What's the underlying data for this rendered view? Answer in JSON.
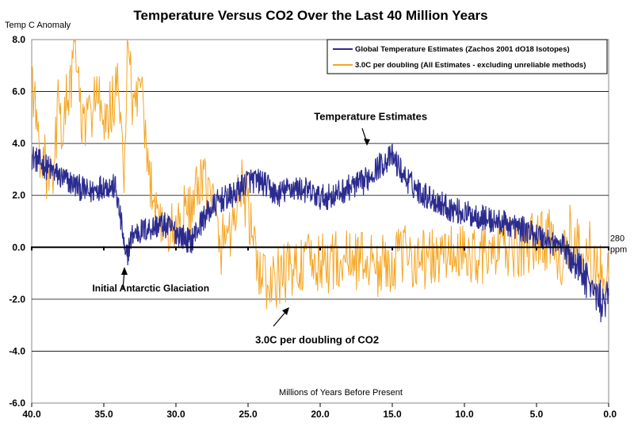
{
  "chart_data": {
    "type": "line",
    "title": "Temperature Versus CO2 Over the Last 40 Million Years",
    "ylabel": "Temp C Anomaly",
    "xlabel": "Millions of Years Before Present",
    "xlim": [
      40,
      0
    ],
    "ylim": [
      -6,
      8
    ],
    "x_ticks": [
      "40.0",
      "35.0",
      "30.0",
      "25.0",
      "20.0",
      "15.0",
      "10.0",
      "5.0",
      "0.0"
    ],
    "y_ticks": [
      "8.0",
      "6.0",
      "4.0",
      "2.0",
      "0.0",
      "-2.0",
      "-4.0",
      "-6.0"
    ],
    "grid": "horizontal",
    "legend_position": "top-right",
    "series": [
      {
        "name": "Global Temperature Estimates (Zachos 2001 dO18 Isotopes)",
        "color": "#2b2b8f",
        "x": [
          40.0,
          39.0,
          38.0,
          37.0,
          36.0,
          35.0,
          34.2,
          33.7,
          33.5,
          33.0,
          32.0,
          31.0,
          30.0,
          29.0,
          28.0,
          27.0,
          26.0,
          25.0,
          24.0,
          23.0,
          22.0,
          21.0,
          20.0,
          19.0,
          18.0,
          17.0,
          16.5,
          16.0,
          15.5,
          15.0,
          14.0,
          13.0,
          12.0,
          11.0,
          10.0,
          9.0,
          8.0,
          7.0,
          6.0,
          5.0,
          4.0,
          3.0,
          2.0,
          1.5,
          1.0,
          0.5,
          0.0
        ],
        "y": [
          3.5,
          3.1,
          2.7,
          2.4,
          2.1,
          2.4,
          2.3,
          0.6,
          -0.5,
          0.5,
          0.7,
          0.9,
          0.6,
          0.2,
          1.2,
          1.8,
          2.0,
          2.6,
          2.5,
          2.0,
          2.3,
          2.2,
          1.9,
          2.0,
          2.3,
          2.5,
          2.8,
          3.1,
          3.3,
          3.5,
          2.6,
          2.1,
          1.8,
          1.5,
          1.3,
          1.2,
          1.0,
          0.9,
          0.7,
          0.5,
          0.2,
          0.0,
          -0.8,
          -1.2,
          -1.7,
          -2.2,
          -1.8
        ],
        "noise": 0.5
      },
      {
        "name": "3.0C per doubling (All Estimates - excluding unreliable methods)",
        "color": "#f5a623",
        "x": [
          40.0,
          39.8,
          39.5,
          39.0,
          38.5,
          38.2,
          38.0,
          37.5,
          37.2,
          37.0,
          36.5,
          36.0,
          35.5,
          35.0,
          34.5,
          34.0,
          33.6,
          33.3,
          33.0,
          32.5,
          32.0,
          31.0,
          30.5,
          30.0,
          29.0,
          28.0,
          27.5,
          27.0,
          26.0,
          25.5,
          25.0,
          24.5,
          24.0,
          23.5,
          23.0,
          22.0,
          21.0,
          20.0,
          19.0,
          18.0,
          17.0,
          16.0,
          15.0,
          14.0,
          13.0,
          12.0,
          11.0,
          10.0,
          9.0,
          8.0,
          7.0,
          6.0,
          5.0,
          4.0,
          3.0,
          2.0,
          1.0,
          0.5,
          0.0
        ],
        "y": [
          7.0,
          5.5,
          4.0,
          3.0,
          2.0,
          5.6,
          4.5,
          5.8,
          6.5,
          8.0,
          4.5,
          5.0,
          6.2,
          4.2,
          5.5,
          6.0,
          3.0,
          8.0,
          5.0,
          6.5,
          3.0,
          1.0,
          0.5,
          0.8,
          1.5,
          2.5,
          2.0,
          0.0,
          1.0,
          2.5,
          1.5,
          -0.5,
          -1.0,
          -1.8,
          -1.2,
          -0.8,
          -0.6,
          -0.7,
          -0.5,
          -0.5,
          -0.4,
          -0.8,
          -0.5,
          -0.3,
          -0.4,
          -0.5,
          -0.2,
          -0.4,
          -0.2,
          -0.3,
          0.0,
          -0.1,
          0.3,
          0.3,
          -0.5,
          -0.2,
          -0.8,
          -1.0,
          -1.5
        ],
        "noise": 1.2
      }
    ],
    "annotations": [
      {
        "text": "Temperature Estimates",
        "x": 16.5,
        "y": 4.9
      },
      {
        "text": "Initial Antarctic Glaciation",
        "x": 35.8,
        "y": -1.7
      },
      {
        "text": "3.0C per doubling  of CO2",
        "x": 24.5,
        "y": -3.7
      },
      {
        "text": "280 ppm",
        "x": -0.1,
        "y": 0.0
      }
    ]
  }
}
